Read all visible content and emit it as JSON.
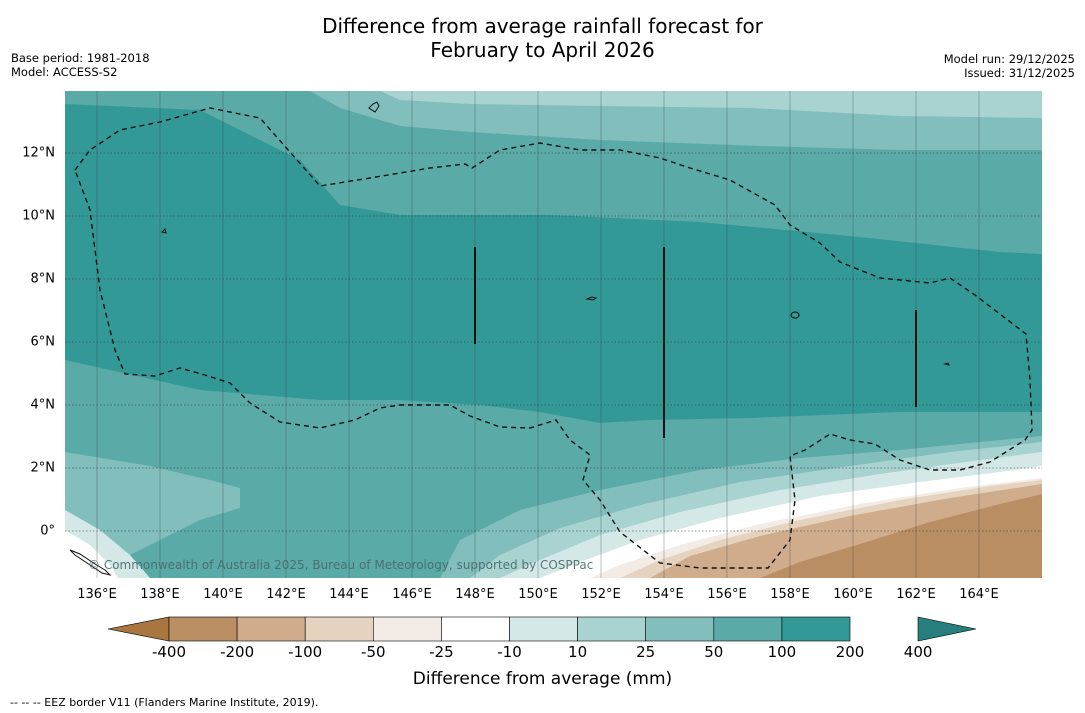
{
  "title": {
    "line1": "Difference from average rainfall forecast for",
    "line2": "February to April 2026"
  },
  "meta": {
    "base_period": "Base period: 1981-2018",
    "model": "Model: ACCESS-S2",
    "model_run": "Model run: 29/12/2025",
    "issued": "Issued: 31/12/2025"
  },
  "map": {
    "longitude_labels": [
      "136°E",
      "138°E",
      "140°E",
      "142°E",
      "144°E",
      "146°E",
      "148°E",
      "150°E",
      "152°E",
      "154°E",
      "156°E",
      "158°E",
      "160°E",
      "162°E",
      "164°E"
    ],
    "latitude_labels": [
      "12°N",
      "10°N",
      "8°N",
      "6°N",
      "4°N",
      "2°N",
      "0°"
    ],
    "copyright": "© Commonwealth of Australia 2025, Bureau of Meteorology, supported by COSPPac",
    "legend_note": "--  --  -- EEZ border V11 (Flanders Marine Institute, 2019)."
  },
  "colorbar": {
    "title": "Difference from average (mm)",
    "labels": [
      "-400",
      "-200",
      "-100",
      "-50",
      "-25",
      "-10",
      "10",
      "25",
      "50",
      "100",
      "200",
      "400"
    ],
    "colors": [
      "#a8763e",
      "#ba8e63",
      "#ceac8c",
      "#e5d3bf",
      "#f3ece6",
      "#ffffff",
      "#d4e9e7",
      "#a8d3d1",
      "#81bebc",
      "#5aaaa8",
      "#339997",
      "#267f7d"
    ]
  }
}
